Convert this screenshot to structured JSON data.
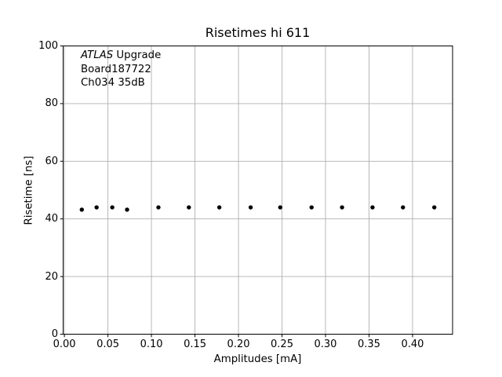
{
  "figure": {
    "title": "Risetimes hi 611",
    "xlabel": "Amplitudes [mA]",
    "ylabel": "Risetime [ns]",
    "annotation": {
      "line1_italic": "ATLAS",
      "line1_rest": " Upgrade",
      "line2": "Board187722",
      "line3": "Ch034 35dB"
    },
    "colors": {
      "marker": "#000000",
      "grid": "#b0b0b0",
      "spine": "#000000",
      "background": "#ffffff",
      "text": "#000000"
    }
  },
  "chart_data": {
    "type": "scatter",
    "title": "Risetimes hi 611",
    "xlabel": "Amplitudes [mA]",
    "ylabel": "Risetime [ns]",
    "annotations": [
      "ATLAS Upgrade",
      "Board187722",
      "Ch034 35dB"
    ],
    "x": [
      0.02,
      0.037,
      0.055,
      0.072,
      0.108,
      0.143,
      0.178,
      0.214,
      0.248,
      0.284,
      0.319,
      0.354,
      0.389,
      0.425
    ],
    "y": [
      43.2,
      44.0,
      44.0,
      43.2,
      44.0,
      44.0,
      44.0,
      44.0,
      44.0,
      44.0,
      44.0,
      44.0,
      44.0,
      44.0
    ],
    "xticks": [
      0.0,
      0.05,
      0.1,
      0.15,
      0.2,
      0.25,
      0.3,
      0.35,
      0.4
    ],
    "xtick_labels": [
      "0.00",
      "0.05",
      "0.10",
      "0.15",
      "0.20",
      "0.25",
      "0.30",
      "0.35",
      "0.40"
    ],
    "yticks": [
      0,
      20,
      40,
      60,
      80,
      100
    ],
    "ytick_labels": [
      "0",
      "20",
      "40",
      "60",
      "80",
      "100"
    ],
    "xlim": [
      -0.001,
      0.446
    ],
    "ylim": [
      0,
      100
    ],
    "grid": true,
    "legend": null,
    "marker": "dot",
    "marker_color": "#000000",
    "grid_color": "#b0b0b0"
  }
}
